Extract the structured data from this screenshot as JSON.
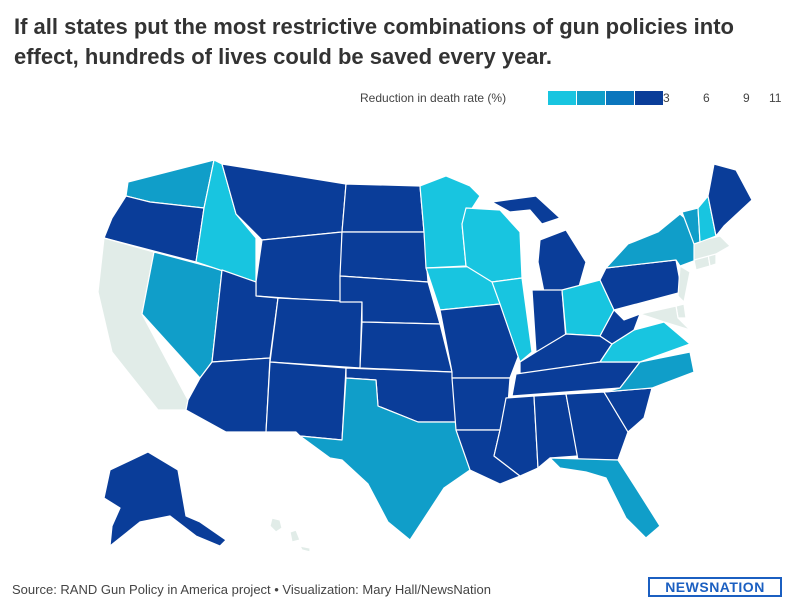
{
  "title": "If all states put the most restrictive combinations of gun policies into effect, hundreds of lives could be saved every year.",
  "legend": {
    "label": "Reduction in death rate (%)",
    "ticks": [
      "3",
      "6",
      "9",
      "11"
    ],
    "colors": [
      "#18c5e0",
      "#109ec9",
      "#0b76bd",
      "#0a3d99"
    ]
  },
  "colors": {
    "level0": "#e1ece8",
    "level1": "#18c5e0",
    "level2": "#109ec9",
    "level3": "#0b76bd",
    "level4": "#0a3d99"
  },
  "states": {
    "WA": 2,
    "OR": 4,
    "CA": 0,
    "NV": 2,
    "ID": 1,
    "MT": 4,
    "WY": 4,
    "UT": 4,
    "AZ": 4,
    "NM": 4,
    "CO": 4,
    "ND": 4,
    "SD": 4,
    "NE": 4,
    "KS": 4,
    "OK": 4,
    "TX": 2,
    "MN": 1,
    "IA": 1,
    "MO": 4,
    "AR": 4,
    "LA": 4,
    "WI": 1,
    "IL": 1,
    "MI": 4,
    "IN": 4,
    "OH": 1,
    "KY": 4,
    "TN": 4,
    "MS": 4,
    "AL": 4,
    "GA": 4,
    "FL": 2,
    "SC": 4,
    "NC": 2,
    "VA": 1,
    "WV": 4,
    "PA": 4,
    "NY": 2,
    "VT": 2,
    "NH": 1,
    "ME": 4,
    "MA": 0,
    "CT": 0,
    "RI": 0,
    "NJ": 0,
    "DE": 0,
    "MD": 0,
    "AK": 4,
    "HI": 0
  },
  "footer": {
    "source": "Source: RAND Gun Policy in America project • Visualization: Mary Hall/NewsNation",
    "logo": "NEWSNATION"
  }
}
